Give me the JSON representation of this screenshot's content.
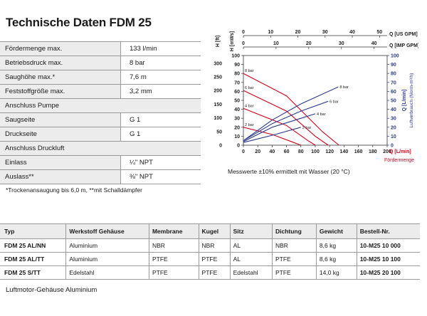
{
  "title": "Technische Daten FDM 25",
  "specs": [
    {
      "label": "Fördermenge max.",
      "value": "133 l/min",
      "type": "data"
    },
    {
      "label": "Betriebsdruck max.",
      "value": "8 bar",
      "type": "data"
    },
    {
      "label": "Saughöhe max.*",
      "value": "7,6 m",
      "type": "data"
    },
    {
      "label": "Feststoffgröße max.",
      "value": "3,2 mm",
      "type": "data"
    },
    {
      "label": "Anschluss Pumpe",
      "value": "",
      "type": "section"
    },
    {
      "label": "Saugseite",
      "value": "G 1",
      "type": "data"
    },
    {
      "label": "Druckseite",
      "value": "G 1",
      "type": "data"
    },
    {
      "label": "Anschluss Druckluft",
      "value": "",
      "type": "section"
    },
    {
      "label": "Einlass",
      "value": "¼\" NPT",
      "type": "data"
    },
    {
      "label": "Auslass**",
      "value": "⅜\" NPT",
      "type": "data"
    }
  ],
  "footnote": "*Trockenansaugung bis 6,0 m, **mit Schalldämpfer",
  "chart_note": "Messwerte ±10% ermittelt mit Wasser (20 °C)",
  "chart_data": {
    "type": "line",
    "x_label": "Q [L/min]",
    "x_sublabel": "Fördermenge",
    "x_ticks": [
      0,
      20,
      40,
      60,
      80,
      100,
      120,
      140,
      160,
      180,
      200
    ],
    "xlim": [
      0,
      200
    ],
    "top_axis_us": {
      "label": "Q [US GPM]",
      "ticks": [
        0,
        10,
        20,
        30,
        40,
        50
      ],
      "max": 52.8
    },
    "top_axis_imp": {
      "label": "Q [IMP GPM]",
      "ticks": [
        0,
        10,
        20,
        30,
        40
      ],
      "max": 44
    },
    "y_left_ft": {
      "label": "H [ft]",
      "ticks": [
        0,
        50,
        100,
        150,
        200,
        250,
        300
      ]
    },
    "y_left_mws": {
      "label": "H [mWs]",
      "ticks": [
        0,
        10,
        20,
        30,
        40,
        50,
        60,
        70,
        80,
        90,
        100
      ]
    },
    "ylim": [
      0,
      100
    ],
    "y_right": {
      "label": "Q [L/min]",
      "sublabel": "Luftverbrauch (Norm-m³/h)",
      "ticks": [
        0,
        10,
        20,
        30,
        40,
        50,
        60,
        70,
        80,
        90,
        100
      ]
    },
    "grid": false,
    "colors": {
      "pressure": "#d0021b",
      "air": "#2d3a8c"
    },
    "pressure_curves": [
      {
        "label": "8 bar",
        "points": [
          [
            0,
            80
          ],
          [
            60,
            55
          ],
          [
            110,
            15
          ],
          [
            133,
            0
          ]
        ]
      },
      {
        "label": "6 bar",
        "points": [
          [
            0,
            61
          ],
          [
            60,
            38
          ],
          [
            100,
            10
          ],
          [
            118,
            0
          ]
        ]
      },
      {
        "label": "4 bar",
        "points": [
          [
            0,
            41
          ],
          [
            60,
            22
          ],
          [
            90,
            5
          ],
          [
            100,
            0
          ]
        ]
      },
      {
        "label": "2 bar",
        "points": [
          [
            0,
            20
          ],
          [
            40,
            12
          ],
          [
            70,
            3
          ],
          [
            80,
            0
          ]
        ]
      }
    ],
    "air_curves": [
      {
        "label": "8 bar",
        "points": [
          [
            0,
            5
          ],
          [
            40,
            28
          ],
          [
            80,
            46
          ],
          [
            132,
            65
          ]
        ]
      },
      {
        "label": "6 bar",
        "points": [
          [
            0,
            5
          ],
          [
            40,
            24
          ],
          [
            80,
            38
          ],
          [
            118,
            49
          ]
        ]
      },
      {
        "label": "4 bar",
        "points": [
          [
            0,
            4
          ],
          [
            40,
            20
          ],
          [
            80,
            30
          ],
          [
            100,
            35
          ]
        ]
      },
      {
        "label": "2 bar",
        "points": [
          [
            0,
            3
          ],
          [
            40,
            11
          ],
          [
            80,
            20
          ]
        ]
      }
    ]
  },
  "types_table": {
    "headers": [
      "Typ",
      "Werkstoff Gehäuse",
      "Membrane",
      "Kugel",
      "Sitz",
      "Dichtung",
      "Gewicht",
      "Bestell-Nr."
    ],
    "rows": [
      [
        "FDM 25 AL/NN",
        "Aluminium",
        "NBR",
        "NBR",
        "AL",
        "NBR",
        "8,6 kg",
        "10-M25 10 000"
      ],
      [
        "FDM 25 AL/TT",
        "Aluminium",
        "PTFE",
        "PTFE",
        "AL",
        "PTFE",
        "8,6 kg",
        "10-M25 10 100"
      ],
      [
        "FDM 25 S/TT",
        "Edelstahl",
        "PTFE",
        "PTFE",
        "Edelstahl",
        "PTFE",
        "14,0 kg",
        "10-M25 20 100"
      ]
    ]
  },
  "bottom_note": "Luftmotor-Gehäuse Aluminium"
}
